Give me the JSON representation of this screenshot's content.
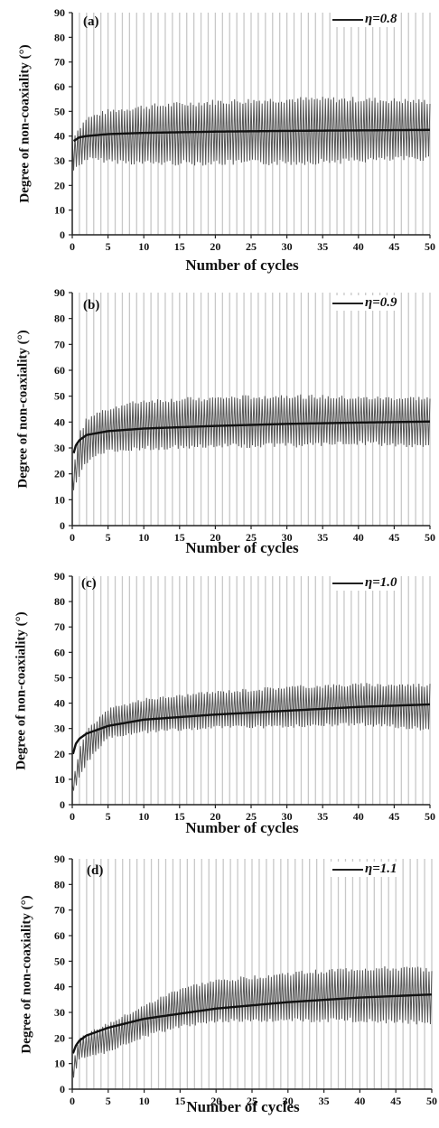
{
  "chart_data": [
    {
      "type": "line",
      "panel_label": "(a)",
      "legend": "η=0.8",
      "xlabel": "Number of cycles",
      "ylabel": "Degree of non-coaxiality (°)",
      "xlim": [
        0,
        50
      ],
      "ylim": [
        0,
        90
      ],
      "xticks": [
        "0",
        "5",
        "10",
        "15",
        "20",
        "25",
        "30",
        "35",
        "40",
        "45",
        "50"
      ],
      "yticks": [
        "0",
        "10",
        "20",
        "30",
        "40",
        "50",
        "60",
        "70",
        "80",
        "90"
      ],
      "grid": "vertical",
      "trend": {
        "x": [
          0.2,
          1,
          2,
          5,
          10,
          20,
          30,
          40,
          50
        ],
        "y": [
          38,
          39.5,
          40,
          40.8,
          41.3,
          41.8,
          42.1,
          42.3,
          42.5
        ]
      },
      "oscillation": {
        "x": [
          0,
          2,
          5,
          10,
          20,
          30,
          40,
          50
        ],
        "upper": [
          40,
          48,
          51,
          53,
          55,
          56,
          56,
          55
        ],
        "lower": [
          25,
          30,
          29,
          28,
          28,
          28,
          29,
          30
        ]
      }
    },
    {
      "type": "line",
      "panel_label": "(b)",
      "legend": "η=0.9",
      "xlabel": "Number of cycles",
      "ylabel": "Degree of non-coaxiality (°)",
      "xlim": [
        0,
        50
      ],
      "ylim": [
        0,
        90
      ],
      "xticks": [
        "0",
        "5",
        "10",
        "15",
        "20",
        "25",
        "30",
        "35",
        "40",
        "45",
        "50"
      ],
      "yticks": [
        "0",
        "10",
        "20",
        "30",
        "40",
        "50",
        "60",
        "70",
        "80",
        "90"
      ],
      "grid": "vertical",
      "trend": {
        "x": [
          0.2,
          0.5,
          1,
          2,
          5,
          10,
          20,
          30,
          40,
          50
        ],
        "y": [
          28,
          31,
          33,
          35,
          36.5,
          37.5,
          38.5,
          39.3,
          39.8,
          40.2
        ]
      },
      "oscillation": {
        "x": [
          0,
          1,
          2,
          5,
          10,
          20,
          30,
          40,
          50
        ],
        "upper": [
          20,
          36,
          42,
          46,
          49,
          50,
          51,
          50,
          50
        ],
        "lower": [
          12,
          18,
          24,
          28,
          29,
          30,
          30,
          31,
          30
        ]
      }
    },
    {
      "type": "line",
      "panel_label": "(c)",
      "legend": "η=1.0",
      "xlabel": "Number of cycles",
      "ylabel": "Degree of non-coaxiality (°)",
      "xlim": [
        0,
        50
      ],
      "ylim": [
        0,
        90
      ],
      "xticks": [
        "0",
        "5",
        "10",
        "15",
        "20",
        "25",
        "30",
        "35",
        "40",
        "45",
        "50"
      ],
      "yticks": [
        "0",
        "10",
        "20",
        "30",
        "40",
        "50",
        "60",
        "70",
        "80",
        "90"
      ],
      "grid": "vertical",
      "trend": {
        "x": [
          0.1,
          0.5,
          1,
          2,
          5,
          10,
          20,
          30,
          40,
          50
        ],
        "y": [
          20,
          24,
          26,
          28,
          31,
          33.5,
          35.5,
          37,
          38.5,
          39.5
        ]
      },
      "oscillation": {
        "x": [
          0,
          1,
          2,
          5,
          10,
          20,
          30,
          40,
          50
        ],
        "upper": [
          8,
          22,
          30,
          38,
          42,
          45,
          47,
          48,
          48
        ],
        "lower": [
          4,
          10,
          16,
          26,
          28,
          30,
          30,
          31,
          29
        ]
      }
    },
    {
      "type": "line",
      "panel_label": "(d)",
      "legend": "η=1.1",
      "xlabel": "Number of cycles",
      "ylabel": "Degree of non-coaxiality (°)",
      "xlim": [
        0,
        50
      ],
      "ylim": [
        0,
        90
      ],
      "xticks": [
        "0",
        "5",
        "10",
        "15",
        "20",
        "25",
        "30",
        "35",
        "40",
        "45",
        "50"
      ],
      "yticks": [
        "0",
        "10",
        "20",
        "30",
        "40",
        "50",
        "60",
        "70",
        "80",
        "90"
      ],
      "grid": "vertical",
      "trend": {
        "x": [
          0.1,
          0.5,
          1,
          2,
          5,
          10,
          20,
          30,
          40,
          50
        ],
        "y": [
          14,
          17,
          19,
          21,
          24,
          27.5,
          31.5,
          34,
          35.8,
          37
        ]
      },
      "oscillation": {
        "x": [
          0,
          1,
          2,
          5,
          10,
          15,
          20,
          30,
          40,
          50
        ],
        "upper": [
          10,
          20,
          22,
          26,
          33,
          40,
          43,
          46,
          48,
          48
        ],
        "lower": [
          2,
          12,
          12,
          14,
          20,
          24,
          26,
          26,
          26,
          25
        ]
      }
    }
  ]
}
